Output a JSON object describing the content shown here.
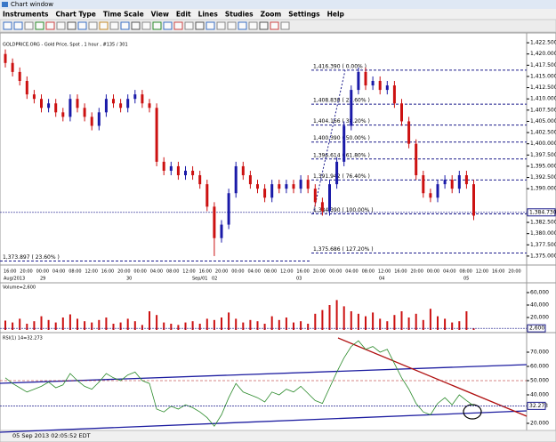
{
  "window_title": "Chart window",
  "menu": [
    "Instruments",
    "Chart Type",
    "Time Scale",
    "View",
    "Edit",
    "Lines",
    "Studies",
    "Zoom",
    "Settings",
    "Help"
  ],
  "chart_label": "GOLDPRICE.ORG - Gold Price, Spot , 1 hour , #135 / 301",
  "price": {
    "open": [
      1420,
      1418,
      1416,
      1414,
      1411,
      1410,
      1408,
      1409,
      1407,
      1406,
      1410,
      1408,
      1406,
      1404,
      1407,
      1410,
      1409,
      1408,
      1410,
      1411,
      1409,
      1408,
      1396,
      1394,
      1395,
      1393,
      1394,
      1393,
      1391,
      1386,
      1379,
      1382,
      1389,
      1395,
      1393,
      1391,
      1390,
      1388,
      1391,
      1390,
      1391,
      1390,
      1392,
      1390,
      1387,
      1385,
      1391,
      1396,
      1404,
      1412,
      1416,
      1413,
      1414,
      1412,
      1413,
      1409,
      1405,
      1400,
      1393,
      1389,
      1388,
      1391,
      1392,
      1390,
      1393,
      1391
    ],
    "high": [
      1421,
      1419,
      1417,
      1415,
      1412,
      1411,
      1410,
      1410,
      1408,
      1411,
      1411,
      1409,
      1407,
      1408,
      1411,
      1411,
      1410,
      1411,
      1412,
      1412,
      1410,
      1409,
      1397,
      1396,
      1396,
      1395,
      1395,
      1394,
      1392,
      1387,
      1383,
      1390,
      1396,
      1396,
      1394,
      1392,
      1391,
      1392,
      1392,
      1392,
      1392,
      1393,
      1393,
      1391,
      1388,
      1392,
      1397,
      1405,
      1413,
      1417,
      1417,
      1415,
      1415,
      1414,
      1414,
      1410,
      1406,
      1401,
      1394,
      1390,
      1392,
      1393,
      1393,
      1394,
      1394,
      1392
    ],
    "low": [
      1417,
      1415,
      1413,
      1410,
      1409,
      1407,
      1407,
      1406,
      1405,
      1405,
      1407,
      1405,
      1403,
      1403,
      1406,
      1408,
      1407,
      1407,
      1409,
      1408,
      1407,
      1395,
      1393,
      1393,
      1392,
      1392,
      1392,
      1390,
      1385,
      1375,
      1378,
      1381,
      1388,
      1392,
      1390,
      1389,
      1387,
      1387,
      1389,
      1389,
      1389,
      1389,
      1389,
      1386,
      1384,
      1384,
      1390,
      1395,
      1403,
      1411,
      1412,
      1412,
      1411,
      1411,
      1408,
      1404,
      1399,
      1392,
      1388,
      1387,
      1387,
      1390,
      1389,
      1389,
      1390,
      1383
    ],
    "close": [
      1418,
      1416,
      1414,
      1411,
      1410,
      1408,
      1409,
      1407,
      1406,
      1410,
      1408,
      1406,
      1404,
      1407,
      1410,
      1409,
      1408,
      1410,
      1411,
      1409,
      1408,
      1396,
      1394,
      1395,
      1393,
      1394,
      1393,
      1391,
      1386,
      1379,
      1382,
      1389,
      1395,
      1393,
      1391,
      1390,
      1388,
      1391,
      1390,
      1391,
      1390,
      1392,
      1390,
      1387,
      1385,
      1391,
      1396,
      1404,
      1412,
      1416,
      1413,
      1414,
      1412,
      1413,
      1409,
      1405,
      1400,
      1393,
      1389,
      1388,
      1391,
      1392,
      1390,
      1393,
      1391,
      1384
    ],
    "up_color": "#1a1aa8",
    "down_color": "#cc1111",
    "ylim": [
      1373.4,
      1424.1
    ],
    "yticks": [
      {
        "value": 1422.5,
        "label": "1,422.500"
      },
      {
        "value": 1420,
        "label": "1,420.000"
      },
      {
        "value": 1417.5,
        "label": "1,417.500"
      },
      {
        "value": 1415,
        "label": "1,415.000"
      },
      {
        "value": 1412.5,
        "label": "1,412.500"
      },
      {
        "value": 1410,
        "label": "1,410.000"
      },
      {
        "value": 1407.5,
        "label": "1,407.500"
      },
      {
        "value": 1405,
        "label": "1,405.000"
      },
      {
        "value": 1402.5,
        "label": "1,402.500"
      },
      {
        "value": 1400,
        "label": "1,400.000"
      },
      {
        "value": 1397.5,
        "label": "1,397.500"
      },
      {
        "value": 1395,
        "label": "1,395.000"
      },
      {
        "value": 1392.5,
        "label": "1,392.500"
      },
      {
        "value": 1390,
        "label": "1,390.000"
      },
      {
        "value": 1382.5,
        "label": "1,382.500"
      },
      {
        "value": 1380,
        "label": "1,380.000"
      },
      {
        "value": 1377.5,
        "label": "1,377.500"
      },
      {
        "value": 1375,
        "label": "1,375.000"
      }
    ],
    "current": {
      "value": 1384.73,
      "label": "1,384.730"
    }
  },
  "fib": [
    {
      "value": 1416.39,
      "label": "1,416.390 ( 0.00% )"
    },
    {
      "value": 1408.838,
      "label": "1,408.838 ( 23.60% )"
    },
    {
      "value": 1404.166,
      "label": "1,404.166 ( 38.20% )"
    },
    {
      "value": 1400.39,
      "label": "1,400.390 ( 50.00% )"
    },
    {
      "value": 1396.614,
      "label": "1,396.614 ( 61.80% )"
    },
    {
      "value": 1391.942,
      "label": "1,391.942 ( 76.40% )"
    },
    {
      "value": 1384.39,
      "label": "1,384.390 ( 100.00% )"
    },
    {
      "value": 1375.686,
      "label": "1,375.686 ( 127.20% )"
    }
  ],
  "fib_extra": {
    "value": 1373.897,
    "label": "1,373.897 ( 23.60% )"
  },
  "time_labels": [
    "16:00",
    "20:00",
    "00:00",
    "04:00",
    "08:00",
    "12:00",
    "16:00",
    "20:00",
    "00:00",
    "04:00",
    "08:00",
    "12:00",
    "16:00",
    "20:00",
    "00:00",
    "04:00",
    "08:00",
    "12:00",
    "16:00",
    "20:00",
    "00:00",
    "04:00",
    "08:00",
    "12:00",
    "16:00",
    "20:00",
    "00:00",
    "04:00",
    "08:00",
    "12:00",
    "16:00",
    "20:00"
  ],
  "date_labels": [
    "Aug/2013",
    "29",
    "30",
    "Sep/01",
    "02",
    "03",
    "04",
    "05"
  ],
  "volume": {
    "label": "Volume=2,600",
    "color": "#cc1111",
    "values": [
      15000,
      12000,
      18000,
      10000,
      14000,
      22000,
      16000,
      12000,
      20000,
      25000,
      18000,
      14000,
      12000,
      16000,
      20000,
      10000,
      12000,
      18000,
      14000,
      8000,
      30000,
      24000,
      12000,
      10000,
      8000,
      12000,
      14000,
      10000,
      18000,
      16000,
      20000,
      28000,
      18000,
      12000,
      16000,
      14000,
      10000,
      22000,
      16000,
      20000,
      12000,
      14000,
      10000,
      26000,
      32000,
      40000,
      48000,
      38000,
      30000,
      26000,
      22000,
      28000,
      18000,
      14000,
      24000,
      30000,
      20000,
      26000,
      16000,
      34000,
      22000,
      18000,
      12000,
      14000,
      30000,
      2600
    ],
    "ylim": [
      0,
      70000
    ],
    "yticks": [
      {
        "value": 60000,
        "label": "60,000"
      },
      {
        "value": 40000,
        "label": "40,000"
      },
      {
        "value": 20000,
        "label": "20,000"
      }
    ],
    "current": {
      "value": 2600,
      "label": "2,600"
    }
  },
  "rsi": {
    "label": "RSI(1) 14=32.273",
    "color": "#2a8a2a",
    "values": [
      52,
      48,
      45,
      42,
      44,
      46,
      49,
      45,
      47,
      55,
      50,
      46,
      44,
      49,
      55,
      52,
      50,
      54,
      56,
      50,
      48,
      30,
      28,
      32,
      30,
      33,
      31,
      28,
      24,
      18,
      26,
      38,
      48,
      42,
      40,
      38,
      35,
      42,
      40,
      44,
      42,
      46,
      41,
      36,
      34,
      45,
      56,
      66,
      74,
      78,
      72,
      74,
      70,
      72,
      62,
      52,
      44,
      34,
      28,
      26,
      34,
      38,
      33,
      40,
      36,
      32.273
    ],
    "ylim": [
      15,
      80
    ],
    "yticks": [
      {
        "value": 70,
        "label": "70.000"
      },
      {
        "value": 60,
        "label": "60.000"
      },
      {
        "value": 50,
        "label": "50.000"
      },
      {
        "value": 40,
        "label": "40.000"
      },
      {
        "value": 20,
        "label": "20.000"
      }
    ],
    "current": {
      "value": 32.273,
      "label": "32.273"
    }
  },
  "status": "05 Sep 2013 02:05:52 EDT"
}
